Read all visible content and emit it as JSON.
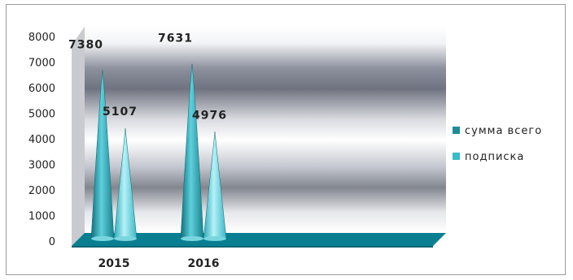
{
  "chart_data": {
    "type": "bar",
    "title": "",
    "xlabel": "",
    "ylabel": "",
    "categories": [
      "2015",
      "2016"
    ],
    "ylim": [
      0,
      8000
    ],
    "yticks": [
      0,
      1000,
      2000,
      3000,
      4000,
      5000,
      6000,
      7000,
      8000
    ],
    "series": [
      {
        "name": "сумма всего",
        "values": [
          7380,
          7631
        ],
        "color": "#1f9aa8"
      },
      {
        "name": "подписка",
        "values": [
          5107,
          4976
        ],
        "color": "#4cc6d4"
      }
    ],
    "legend_position": "right",
    "grid": false,
    "style": "3d-cone"
  }
}
